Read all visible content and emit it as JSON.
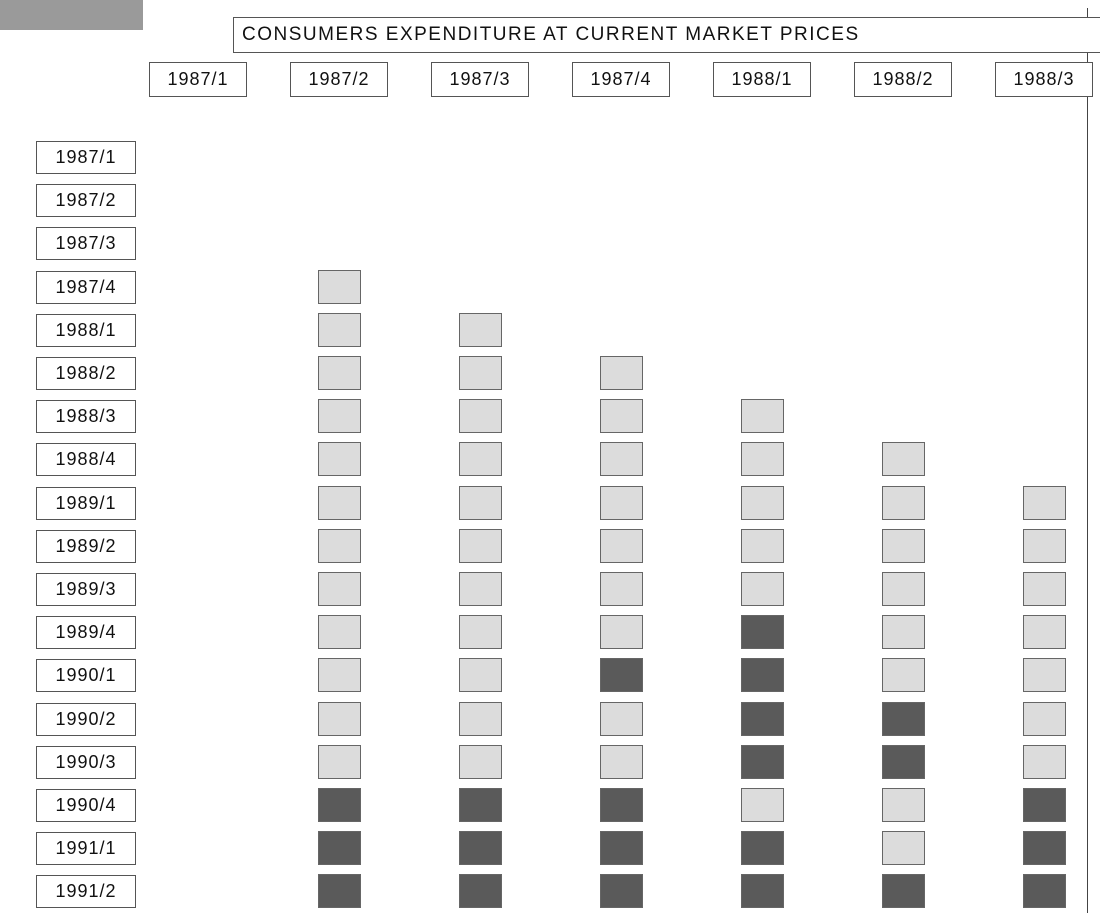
{
  "title": "CONSUMERS EXPENDITURE AT CURRENT MARKET PRICES",
  "columns": [
    "1987/1",
    "1987/2",
    "1987/3",
    "1987/4",
    "1988/1",
    "1988/2",
    "1988/3"
  ],
  "rows": [
    "1987/1",
    "1987/2",
    "1987/3",
    "1987/4",
    "1988/1",
    "1988/2",
    "1988/3",
    "1988/4",
    "1989/1",
    "1989/2",
    "1989/3",
    "1989/4",
    "1990/1",
    "1990/2",
    "1990/3",
    "1990/4",
    "1991/1",
    "1991/2"
  ],
  "colors": {
    "light": "#dcdcdc",
    "dark": "#5a5a5a"
  },
  "cells": [
    [
      null,
      null,
      null,
      null,
      null,
      null,
      null
    ],
    [
      null,
      null,
      null,
      null,
      null,
      null,
      null
    ],
    [
      null,
      null,
      null,
      null,
      null,
      null,
      null
    ],
    [
      null,
      "light",
      null,
      null,
      null,
      null,
      null
    ],
    [
      null,
      "light",
      "light",
      null,
      null,
      null,
      null
    ],
    [
      null,
      "light",
      "light",
      "light",
      null,
      null,
      null
    ],
    [
      null,
      "light",
      "light",
      "light",
      "light",
      null,
      null
    ],
    [
      null,
      "light",
      "light",
      "light",
      "light",
      "light",
      null
    ],
    [
      null,
      "light",
      "light",
      "light",
      "light",
      "light",
      "light"
    ],
    [
      null,
      "light",
      "light",
      "light",
      "light",
      "light",
      "light"
    ],
    [
      null,
      "light",
      "light",
      "light",
      "light",
      "light",
      "light"
    ],
    [
      null,
      "light",
      "light",
      "light",
      "dark",
      "light",
      "light"
    ],
    [
      null,
      "light",
      "light",
      "dark",
      "dark",
      "light",
      "light"
    ],
    [
      null,
      "light",
      "light",
      "light",
      "dark",
      "dark",
      "light"
    ],
    [
      null,
      "light",
      "light",
      "light",
      "dark",
      "dark",
      "light"
    ],
    [
      null,
      "dark",
      "dark",
      "dark",
      "light",
      "light",
      "dark"
    ],
    [
      null,
      "dark",
      "dark",
      "dark",
      "dark",
      "light",
      "dark"
    ],
    [
      null,
      "dark",
      "dark",
      "dark",
      "dark",
      "dark",
      "dark"
    ]
  ]
}
